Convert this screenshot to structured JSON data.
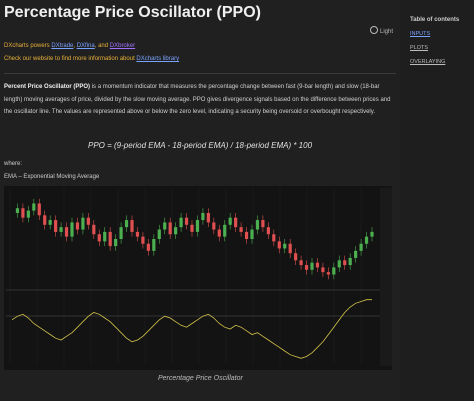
{
  "page": {
    "title": "Percentage Price Oscillator (PPO)",
    "theme_toggle": "Light",
    "powers": {
      "prefix": "DXcharts powers",
      "link1": "DXtrade",
      "sep": ",",
      "link2": "DXfina",
      "and": ", and",
      "link3": "DXbroker"
    },
    "website": {
      "text": "Check our website to find more information about",
      "link": "DXcharts library"
    },
    "description": {
      "term": "Percent Price Oscillator (PPO)",
      "body": " is a momentum indicator that measures the percentage change between fast (9-bar length) and slow (18-bar length) moving averages of price, divided by the slow moving average. PPO gives divergence signals based on the difference between prices and the oscillator line. The values are represented above or below the zero level, indicating a security being oversold or overbought respectively."
    },
    "formula": "PPO = (9-period EMA - 18-period EMA) / 18-period EMA) * 100",
    "where": "where:",
    "ema_def": "EMA – Exponential Moving Average",
    "caption": "Percentage Price Oscillator"
  },
  "toc": {
    "title": "Table of contents",
    "items": [
      "INPUTS",
      "PLOTS",
      "OVERLAYING"
    ]
  },
  "colors": {
    "up": "#4caf50",
    "down": "#e05050",
    "ppo": "#d4c34a",
    "accent_link": "#7aa2ff",
    "text_orange": "#e8b13a"
  },
  "chart_data": {
    "type": "candlestick",
    "series": [
      {
        "name": "price",
        "values": [
          60,
          62,
          58,
          61,
          64,
          59,
          55,
          57,
          52,
          54,
          50,
          56,
          53,
          58,
          55,
          51,
          48,
          52,
          46,
          49,
          54,
          57,
          52,
          50,
          47,
          44,
          49,
          53,
          56,
          51,
          54,
          58,
          55,
          52,
          57,
          60,
          56,
          53,
          50,
          55,
          58,
          54,
          52,
          49,
          53,
          57,
          54,
          51,
          48,
          45,
          47,
          43,
          40,
          38,
          36,
          39,
          37,
          35,
          34,
          37,
          40,
          38,
          41,
          44,
          47,
          50,
          52
        ]
      },
      {
        "name": "PPO",
        "values": [
          0.5,
          0.7,
          0.8,
          0.6,
          0.3,
          0.1,
          -0.1,
          -0.3,
          -0.5,
          -0.6,
          -0.4,
          -0.2,
          0.1,
          0.4,
          0.7,
          0.9,
          0.8,
          0.6,
          0.4,
          0.1,
          -0.2,
          -0.5,
          -0.7,
          -0.6,
          -0.4,
          -0.1,
          0.2,
          0.5,
          0.7,
          0.6,
          0.4,
          0.2,
          0.1,
          0.3,
          0.5,
          0.7,
          0.8,
          0.6,
          0.3,
          0.1,
          0.0,
          0.2,
          0.1,
          -0.1,
          -0.3,
          -0.2,
          -0.4,
          -0.6,
          -0.8,
          -1.0,
          -1.2,
          -1.4,
          -1.5,
          -1.6,
          -1.5,
          -1.3,
          -1.0,
          -0.7,
          -0.3,
          0.1,
          0.5,
          0.9,
          1.2,
          1.4,
          1.5,
          1.6,
          1.6
        ]
      }
    ]
  }
}
